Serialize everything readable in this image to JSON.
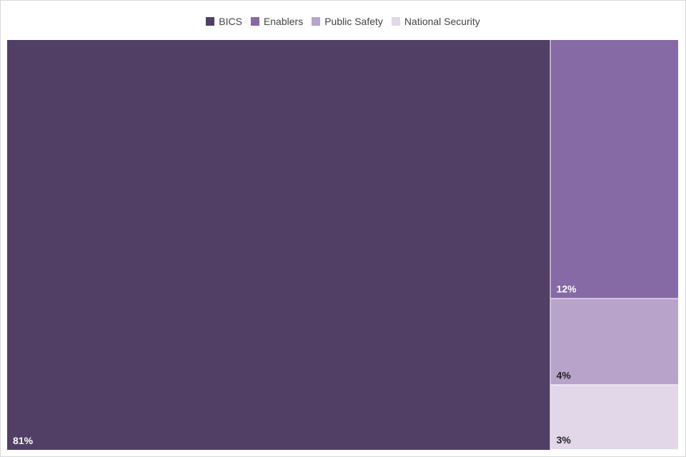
{
  "chart_data": {
    "type": "treemap",
    "legend_position": "top-center",
    "categories": [
      "BICS",
      "Enablers",
      "Public Safety",
      "National Security"
    ],
    "values": [
      81,
      12,
      4,
      3
    ],
    "labels": [
      "81%",
      "12%",
      "4%",
      "3%"
    ],
    "colors": [
      "#513f66",
      "#866aa5",
      "#b8a3ca",
      "#e1d7e9"
    ],
    "label_colors": [
      "#ffffff",
      "#ffffff",
      "#222222",
      "#222222"
    ]
  }
}
